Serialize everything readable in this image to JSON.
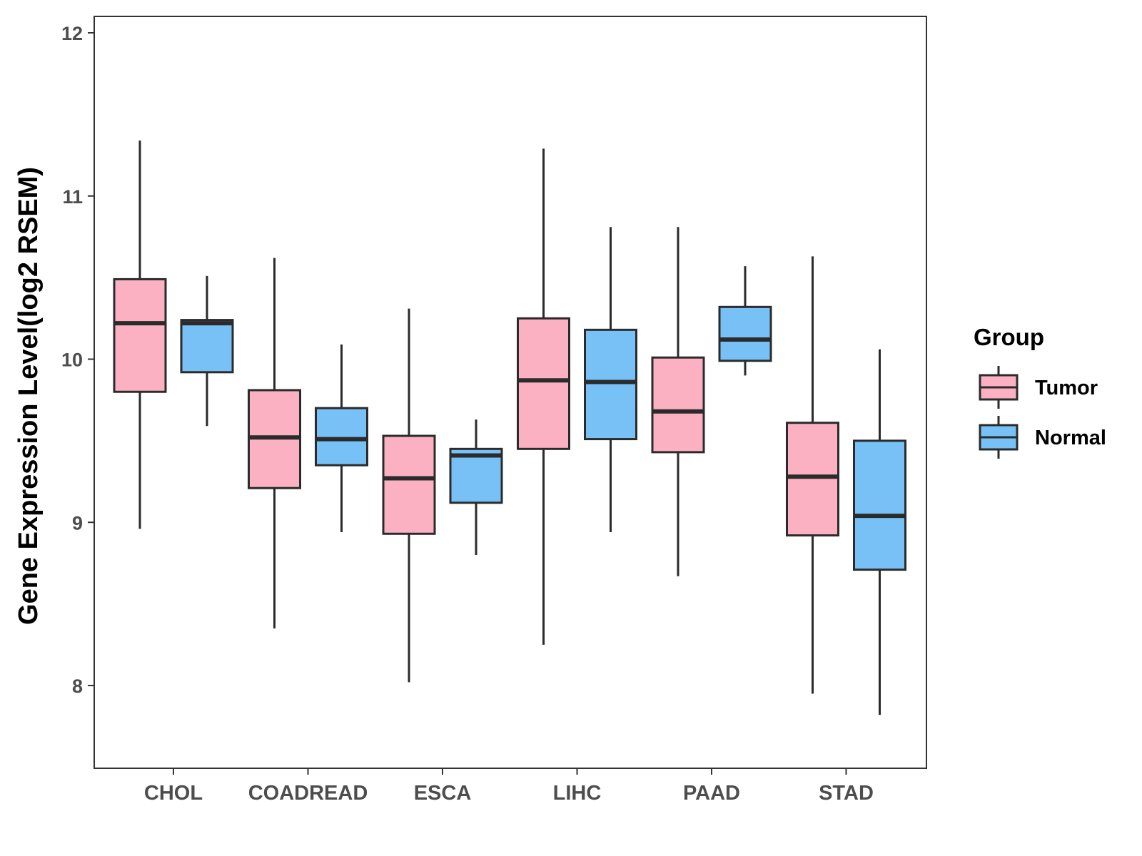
{
  "chart_data": {
    "type": "boxplot",
    "title": "",
    "xlabel": "",
    "ylabel": "Gene Expression Level(log2 RSEM)",
    "ylim": [
      7.5,
      12.1
    ],
    "yticks": [
      8,
      9,
      10,
      11,
      12
    ],
    "categories": [
      "CHOL",
      "COADREAD",
      "ESCA",
      "LIHC",
      "PAAD",
      "STAD"
    ],
    "legend": {
      "title": "Group",
      "position": "right",
      "entries": [
        "Tumor",
        "Normal"
      ]
    },
    "colors": {
      "Tumor": "#fbb1c2",
      "Normal": "#77c1f7",
      "outline": "#2b2b2b"
    },
    "series": [
      {
        "name": "Tumor",
        "boxes": [
          {
            "category": "CHOL",
            "min": 8.96,
            "q1": 9.8,
            "median": 10.22,
            "q3": 10.49,
            "max": 11.34
          },
          {
            "category": "COADREAD",
            "min": 8.35,
            "q1": 9.21,
            "median": 9.52,
            "q3": 9.81,
            "max": 10.62
          },
          {
            "category": "ESCA",
            "min": 8.02,
            "q1": 8.93,
            "median": 9.27,
            "q3": 9.53,
            "max": 10.31
          },
          {
            "category": "LIHC",
            "min": 8.25,
            "q1": 9.45,
            "median": 9.87,
            "q3": 10.25,
            "max": 11.29
          },
          {
            "category": "PAAD",
            "min": 8.67,
            "q1": 9.43,
            "median": 9.68,
            "q3": 10.01,
            "max": 10.81
          },
          {
            "category": "STAD",
            "min": 7.95,
            "q1": 8.92,
            "median": 9.28,
            "q3": 9.61,
            "max": 10.63
          }
        ]
      },
      {
        "name": "Normal",
        "boxes": [
          {
            "category": "CHOL",
            "min": 9.59,
            "q1": 9.92,
            "median": 10.22,
            "q3": 10.24,
            "max": 10.51
          },
          {
            "category": "COADREAD",
            "min": 8.94,
            "q1": 9.35,
            "median": 9.51,
            "q3": 9.7,
            "max": 10.09
          },
          {
            "category": "ESCA",
            "min": 8.8,
            "q1": 9.12,
            "median": 9.41,
            "q3": 9.45,
            "max": 9.63
          },
          {
            "category": "LIHC",
            "min": 8.94,
            "q1": 9.51,
            "median": 9.86,
            "q3": 10.18,
            "max": 10.81
          },
          {
            "category": "PAAD",
            "min": 9.9,
            "q1": 9.99,
            "median": 10.12,
            "q3": 10.32,
            "max": 10.57
          },
          {
            "category": "STAD",
            "min": 7.82,
            "q1": 8.71,
            "median": 9.04,
            "q3": 9.5,
            "max": 10.06
          }
        ]
      }
    ]
  }
}
